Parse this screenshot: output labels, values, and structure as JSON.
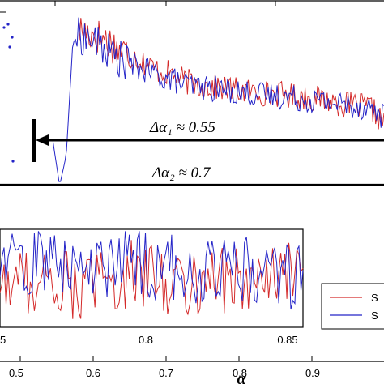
{
  "chart_data": [
    {
      "type": "line",
      "panel": "main",
      "xlim": [
        0.42,
        1.0
      ],
      "ylim": [
        -1,
        10
      ],
      "grid": false,
      "series": [
        {
          "color": "#d42a2a",
          "x": [
            0.54,
            0.56,
            0.58,
            0.6,
            0.62,
            0.64,
            0.66,
            0.68,
            0.7,
            0.72,
            0.74,
            0.76,
            0.78,
            0.8,
            0.82,
            0.84,
            0.86,
            0.88,
            0.9,
            0.92,
            0.94,
            0.96,
            0.98,
            1.0
          ],
          "y": [
            8.3,
            8.1,
            7.8,
            7.2,
            6.9,
            6.4,
            6.0,
            5.8,
            5.4,
            5.2,
            5.1,
            5.0,
            4.9,
            4.8,
            4.7,
            4.7,
            4.6,
            4.5,
            4.4,
            4.3,
            4.1,
            4.0,
            3.9,
            3.0
          ]
        },
        {
          "color": "#2424c8",
          "x": [
            0.5,
            0.51,
            0.52,
            0.53,
            0.54,
            0.56,
            0.58,
            0.6,
            0.62,
            0.64,
            0.66,
            0.68,
            0.7,
            0.72,
            0.74,
            0.76,
            0.78,
            0.8,
            0.82,
            0.84,
            0.86,
            0.88,
            0.9,
            0.92,
            0.94,
            0.96,
            0.98,
            1.0
          ],
          "y": [
            2.0,
            -0.5,
            1.2,
            7.6,
            8.0,
            7.7,
            7.2,
            6.7,
            6.3,
            6.0,
            5.7,
            5.5,
            5.2,
            5.1,
            5.0,
            4.9,
            4.8,
            4.7,
            4.6,
            4.6,
            4.5,
            4.4,
            4.3,
            4.2,
            4.1,
            4.0,
            3.9,
            3.4
          ]
        }
      ],
      "annotations": [
        {
          "text": "Δα₁ ≈ 0.55",
          "x_from": 1.0,
          "x_to": 0.5
        },
        {
          "text": "Δα₂ ≈ 0.7"
        }
      ]
    },
    {
      "type": "line",
      "panel": "inset",
      "xlim": [
        0.5,
        0.85
      ],
      "ylim": [
        0,
        1
      ],
      "x_ticks": [
        "5",
        "0.8",
        "0.85"
      ],
      "grid": false,
      "series": [
        {
          "color": "#d42a2a",
          "x": [
            0.5,
            0.55,
            0.6,
            0.65,
            0.7,
            0.75,
            0.8,
            0.85
          ],
          "y": [
            0.45,
            0.5,
            0.4,
            0.55,
            0.45,
            0.5,
            0.45,
            0.55
          ]
        },
        {
          "color": "#2424c8",
          "x": [
            0.5,
            0.55,
            0.6,
            0.65,
            0.7,
            0.75,
            0.8,
            0.85
          ],
          "y": [
            0.6,
            0.7,
            0.55,
            0.65,
            0.6,
            0.55,
            0.6,
            0.5
          ]
        }
      ],
      "legend": {
        "placement": "right",
        "entries": [
          {
            "label": "S",
            "color": "#d42a2a"
          },
          {
            "label": "S",
            "color": "#2424c8"
          }
        ]
      }
    },
    {
      "type": "axis",
      "panel": "bottom-axis",
      "xlim": [
        0.45,
        0.96
      ],
      "x_ticks": [
        "0.5",
        "0.6",
        "0.7",
        "0.8",
        "0.9"
      ],
      "xlabel": "α"
    }
  ]
}
